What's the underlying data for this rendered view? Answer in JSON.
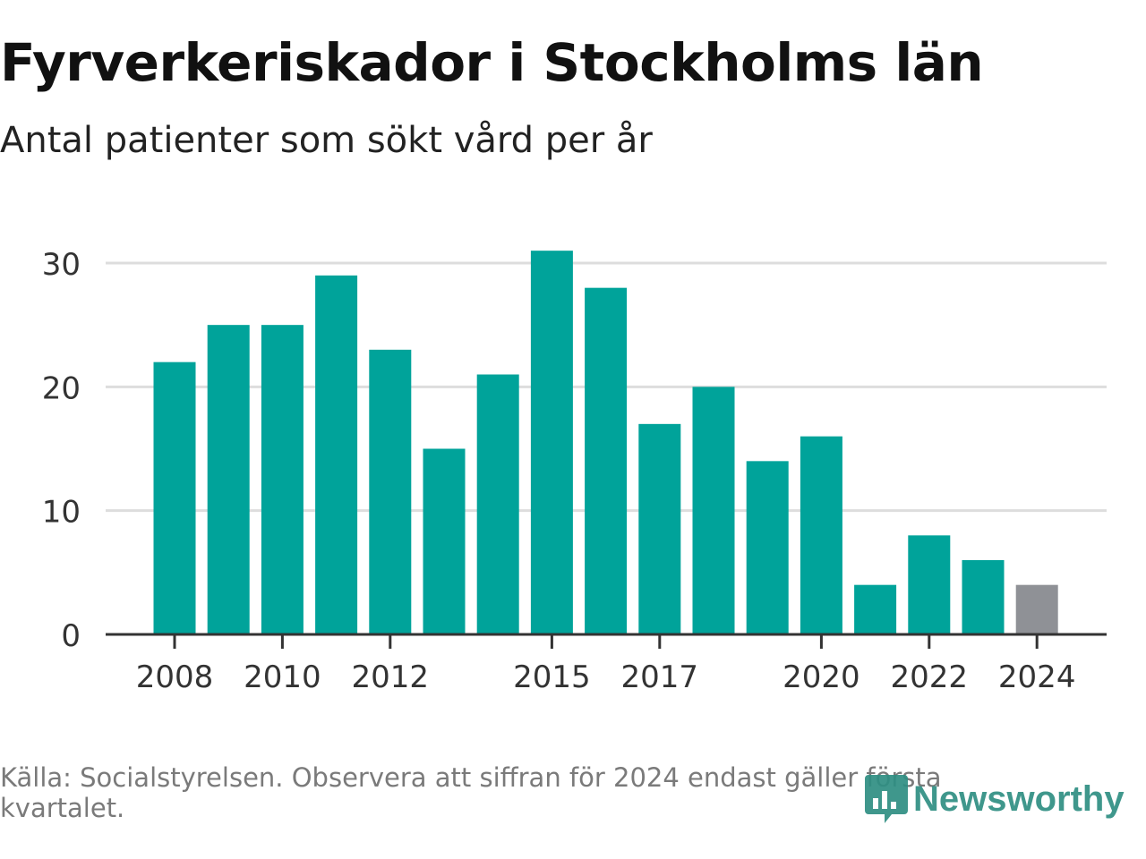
{
  "header": {
    "title": "Fyrverkeriskador i Stockholms län",
    "subtitle": "Antal patienter som sökt vård per år"
  },
  "footer": {
    "source": "Källa: Socialstyrelsen. Observera att siffran för 2024 endast gäller första kvartalet.",
    "brand": "Newsworthy"
  },
  "colors": {
    "bar": "#00a39a",
    "bar_partial": "#8f9196",
    "grid": "#dddddd",
    "axis": "#333333",
    "brand": "#2f8f83"
  },
  "icons": {
    "brand": "newsworthy-logo-icon"
  },
  "chart_data": {
    "type": "bar",
    "categories": [
      "2008",
      "2009",
      "2010",
      "2011",
      "2012",
      "2013",
      "2014",
      "2015",
      "2016",
      "2017",
      "2018",
      "2019",
      "2020",
      "2021",
      "2022",
      "2023",
      "2024"
    ],
    "values": [
      22,
      25,
      25,
      29,
      23,
      15,
      21,
      31,
      28,
      17,
      20,
      14,
      16,
      4,
      8,
      6,
      4
    ],
    "partial_categories": [
      "2024"
    ],
    "x_tick_labels": [
      "2008",
      "2010",
      "2012",
      "2015",
      "2017",
      "2020",
      "2022",
      "2024"
    ],
    "y_ticks": [
      0,
      10,
      20,
      30
    ],
    "ylim": [
      0,
      30
    ],
    "xlabel": "",
    "ylabel": "",
    "grid": true,
    "legend": "none"
  }
}
